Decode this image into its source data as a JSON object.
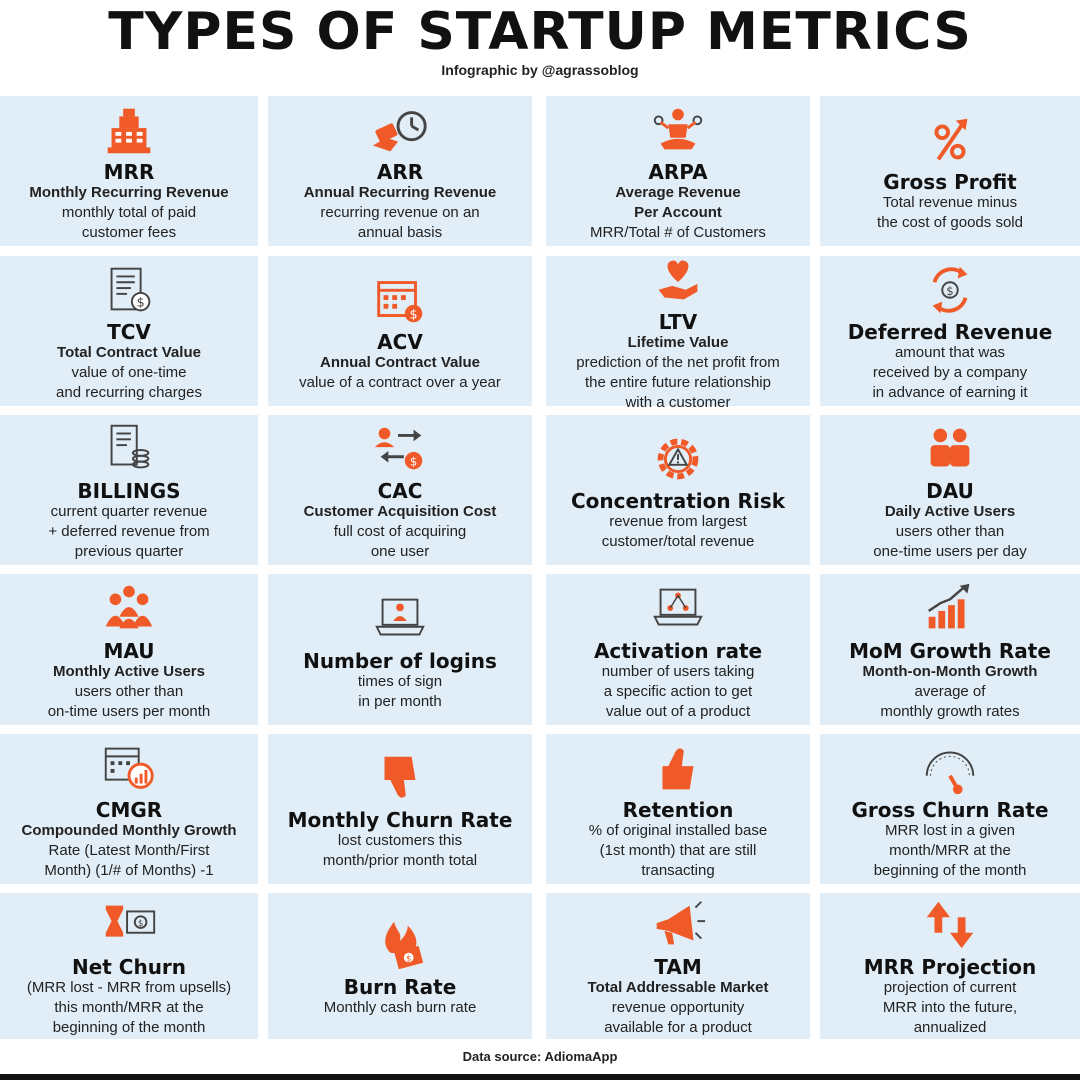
{
  "title": "TYPES OF STARTUP METRICS",
  "subtitle": "Infographic by @agrassoblog",
  "footer": "Data source: AdiomaApp",
  "accent_color": "#f05a28",
  "card_color": "#e1eef7",
  "cards": [
    {
      "name": "MRR",
      "full": "Monthly Recurring Revenue",
      "desc": [
        "monthly total of paid",
        "customer fees"
      ],
      "icon": "cash-register-icon"
    },
    {
      "name": "ARR",
      "full": "Annual Recurring Revenue",
      "desc": [
        "recurring revenue on an",
        "annual basis"
      ],
      "icon": "money-clock-icon"
    },
    {
      "name": "ARPA",
      "full": "Average Revenue",
      "full2": "Per Account",
      "desc": [
        "MRR/Total # of Customers"
      ],
      "icon": "meditation-coins-icon"
    },
    {
      "name": "Gross Profit",
      "full": "",
      "desc": [
        "Total revenue minus",
        "the cost of goods sold"
      ],
      "icon": "percent-arrow-icon"
    },
    {
      "name": "TCV",
      "full": "Total Contract Value",
      "desc": [
        "value of one-time",
        "and recurring charges"
      ],
      "icon": "contract-dollar-icon"
    },
    {
      "name": "ACV",
      "full": "Annual Contract Value",
      "desc": [
        "value of a contract over a year"
      ],
      "icon": "calendar-dollar-icon"
    },
    {
      "name": "LTV",
      "full": "Lifetime Value",
      "desc": [
        "prediction of the net profit from",
        "the entire future relationship",
        "with a customer"
      ],
      "icon": "heart-hand-icon"
    },
    {
      "name": "Deferred Revenue",
      "full": "",
      "desc": [
        "amount that was",
        "received by a company",
        "in advance of earning it"
      ],
      "icon": "cycle-dollar-icon"
    },
    {
      "name": "BILLINGS",
      "full": "",
      "desc": [
        "current quarter revenue",
        "+ deferred revenue from",
        "previous quarter"
      ],
      "icon": "invoice-coins-icon"
    },
    {
      "name": "CAC",
      "full": "Customer Acquisition Cost",
      "desc": [
        "full cost of acquiring",
        "one user"
      ],
      "icon": "user-exchange-icon"
    },
    {
      "name": "Concentration Risk",
      "full": "",
      "desc": [
        "revenue from largest",
        "customer/total revenue"
      ],
      "icon": "gear-warning-icon"
    },
    {
      "name": "DAU",
      "full": "Daily Active Users",
      "desc": [
        "users other than",
        "one-time users per day"
      ],
      "icon": "two-users-icon"
    },
    {
      "name": "MAU",
      "full": "Monthly Active Users",
      "desc": [
        "users other than",
        "on-time users per month"
      ],
      "icon": "user-group-icon"
    },
    {
      "name": "Number of logins",
      "full": "",
      "desc": [
        "times of sign",
        "in per month"
      ],
      "icon": "laptop-user-icon"
    },
    {
      "name": "Activation rate",
      "full": "",
      "desc": [
        "number of users taking",
        "a specific action to get",
        "value out of a product"
      ],
      "icon": "laptop-network-icon"
    },
    {
      "name": "MoM Growth Rate",
      "full": "Month-on-Month Growth",
      "desc": [
        "average of",
        "monthly growth rates"
      ],
      "icon": "growth-chart-icon"
    },
    {
      "name": "CMGR",
      "full": "Compounded Monthly Growth",
      "desc": [
        "Rate (Latest Month/First",
        "Month) (1/# of Months) -1"
      ],
      "icon": "calendar-chart-icon"
    },
    {
      "name": "Monthly Churn Rate",
      "full": "",
      "desc": [
        "lost customers this",
        "month/prior month total"
      ],
      "icon": "thumbs-down-icon"
    },
    {
      "name": "Retention",
      "full": "",
      "desc": [
        "% of original installed base",
        "(1st month) that are still",
        "transacting"
      ],
      "icon": "thumbs-up-icon"
    },
    {
      "name": "Gross Churn Rate",
      "full": "",
      "desc": [
        "MRR lost in a given",
        "month/MRR at the",
        "beginning of the month"
      ],
      "icon": "gauge-icon"
    },
    {
      "name": "Net Churn",
      "full": "",
      "desc": [
        "(MRR lost - MRR from upsells)",
        "this month/MRR at the",
        "beginning of the month"
      ],
      "icon": "hourglass-money-icon"
    },
    {
      "name": "Burn Rate",
      "full": "",
      "desc": [
        "Monthly cash burn rate"
      ],
      "icon": "burning-money-icon"
    },
    {
      "name": "TAM",
      "full": "Total Addressable Market",
      "desc": [
        "revenue opportunity",
        "available for a product"
      ],
      "icon": "megaphone-icon"
    },
    {
      "name": "MRR Projection",
      "full": "",
      "desc": [
        "projection of current",
        "MRR into the future,",
        "annualized"
      ],
      "icon": "up-down-arrows-icon"
    }
  ]
}
